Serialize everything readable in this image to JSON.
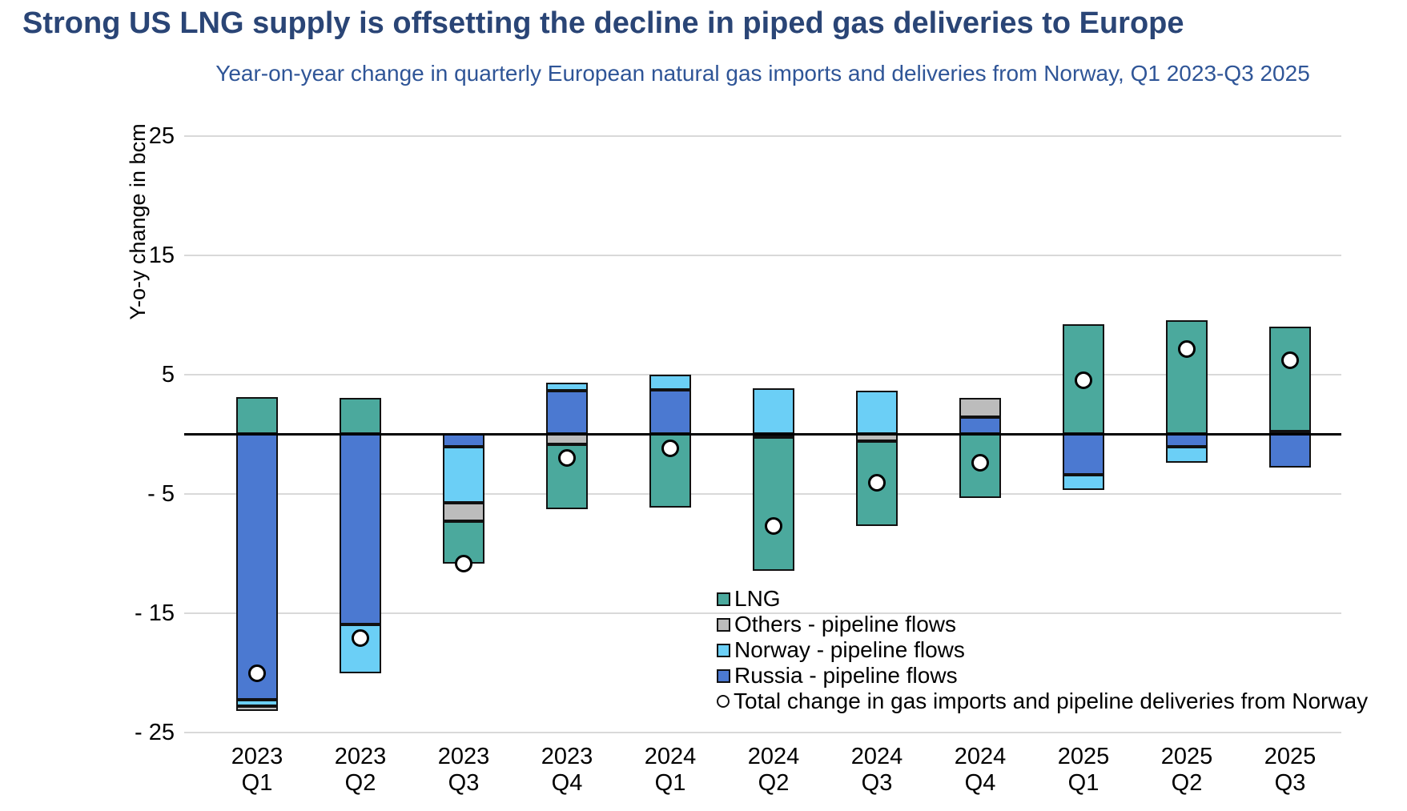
{
  "header": {
    "title": "Strong US LNG supply is offsetting the decline in piped gas deliveries to Europe",
    "subtitle": "Year-on-year change in quarterly European natural gas imports and deliveries from Norway, Q1 2023-Q3 2025"
  },
  "chart_data": {
    "type": "bar",
    "stacked": true,
    "title": "Year-on-year change in quarterly European natural gas imports and deliveries from Norway, Q1 2023-Q3 2025",
    "categories": [
      {
        "year": "2023",
        "quarter": "Q1"
      },
      {
        "year": "2023",
        "quarter": "Q2"
      },
      {
        "year": "2023",
        "quarter": "Q3"
      },
      {
        "year": "2023",
        "quarter": "Q4"
      },
      {
        "year": "2024",
        "quarter": "Q1"
      },
      {
        "year": "2024",
        "quarter": "Q2"
      },
      {
        "year": "2024",
        "quarter": "Q3"
      },
      {
        "year": "2024",
        "quarter": "Q4"
      },
      {
        "year": "2025",
        "quarter": "Q1"
      },
      {
        "year": "2025",
        "quarter": "Q2"
      },
      {
        "year": "2025",
        "quarter": "Q3"
      }
    ],
    "series": [
      {
        "name": "LNG",
        "color": "#4ba99d",
        "values": [
          3.1,
          3.0,
          -3.6,
          -5.4,
          -6.2,
          -11.2,
          -7.1,
          -5.4,
          9.2,
          9.5,
          8.8
        ]
      },
      {
        "name": "Others - pipeline flows",
        "color": "#bcbcbc",
        "values": [
          -0.4,
          0,
          -1.5,
          -0.9,
          0,
          0,
          -0.6,
          1.6,
          0,
          0,
          0
        ]
      },
      {
        "name": "Norway - pipeline flows",
        "color": "#6bcff6",
        "values": [
          -0.5,
          -4.1,
          -4.7,
          0.7,
          1.3,
          3.8,
          3.6,
          0,
          -1.3,
          -1.3,
          0.2
        ]
      },
      {
        "name": "Russia - pipeline flows",
        "color": "#4b79d1",
        "values": [
          -22.3,
          -16.0,
          -1.1,
          3.6,
          3.7,
          -0.3,
          0,
          1.4,
          -3.4,
          -1.1,
          -2.8
        ]
      }
    ],
    "stack_order_from_axis": [
      "Russia - pipeline flows",
      "Norway - pipeline flows",
      "Others - pipeline flows",
      "LNG"
    ],
    "total_series": {
      "name": "Total change in gas imports and pipeline deliveries from Norway",
      "marker": "open-circle",
      "values": [
        -20.1,
        -17.1,
        -10.9,
        -2.0,
        -1.2,
        -7.7,
        -4.1,
        -2.4,
        4.5,
        7.1,
        6.2
      ]
    },
    "ylabel": "Y-o-y change in bcm",
    "xlabel": "",
    "ylim": [
      -25,
      25
    ],
    "yticks": [
      25,
      15,
      5,
      -5,
      -15,
      -25
    ],
    "ytick_labels": [
      "25",
      "15",
      "5",
      "- 5",
      "- 15",
      "- 25"
    ],
    "grid": true,
    "zero_line": true,
    "legend_position": "inside-bottom-right"
  },
  "legend": {
    "items": [
      {
        "label": "LNG",
        "swatch": "square",
        "color": "#4ba99d"
      },
      {
        "label": "Others - pipeline flows",
        "swatch": "square",
        "color": "#bcbcbc"
      },
      {
        "label": "Norway - pipeline flows",
        "swatch": "square",
        "color": "#6bcff6"
      },
      {
        "label": "Russia - pipeline flows",
        "swatch": "square",
        "color": "#4b79d1"
      },
      {
        "label": "Total change in gas imports and pipeline deliveries from Norway",
        "swatch": "open-circle",
        "color": "#ffffff"
      }
    ]
  }
}
